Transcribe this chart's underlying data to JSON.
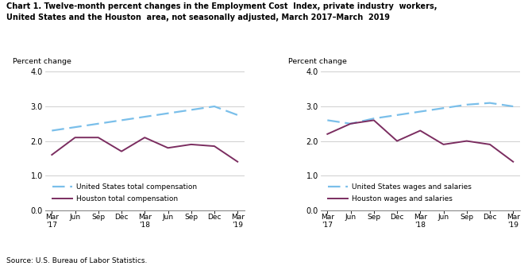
{
  "title_line1": "Chart 1. Twelve-month percent changes in the Employment Cost  Index, private industry  workers,",
  "title_line2": "United States and the Houston  area, not seasonally adjusted, March 2017–March  2019",
  "source": "Source: U.S. Bureau of Labor Statistics.",
  "ylabel": "Percent change",
  "ylim": [
    0.0,
    4.0
  ],
  "yticks": [
    0.0,
    1.0,
    2.0,
    3.0,
    4.0
  ],
  "left_chart": {
    "us_total_comp": [
      2.3,
      2.4,
      2.5,
      2.6,
      2.7,
      2.8,
      2.9,
      3.0,
      2.75
    ],
    "houston_total_comp": [
      1.6,
      2.1,
      2.1,
      1.7,
      2.1,
      1.8,
      1.9,
      1.85,
      1.4
    ],
    "legend1": "United States total compensation",
    "legend2": "Houston total compensation"
  },
  "right_chart": {
    "us_wages_salaries": [
      2.6,
      2.5,
      2.65,
      2.75,
      2.85,
      2.95,
      3.05,
      3.1,
      3.0
    ],
    "houston_wages_salaries": [
      2.2,
      2.5,
      2.6,
      2.0,
      2.3,
      1.9,
      2.0,
      1.9,
      1.4
    ],
    "legend1": "United States wages and salaries",
    "legend2": "Houston wages and salaries"
  },
  "us_line_color": "#7ABFEA",
  "houston_line_color": "#7B2D60",
  "bg_color": "#FFFFFF",
  "grid_color": "#C8C8C8"
}
